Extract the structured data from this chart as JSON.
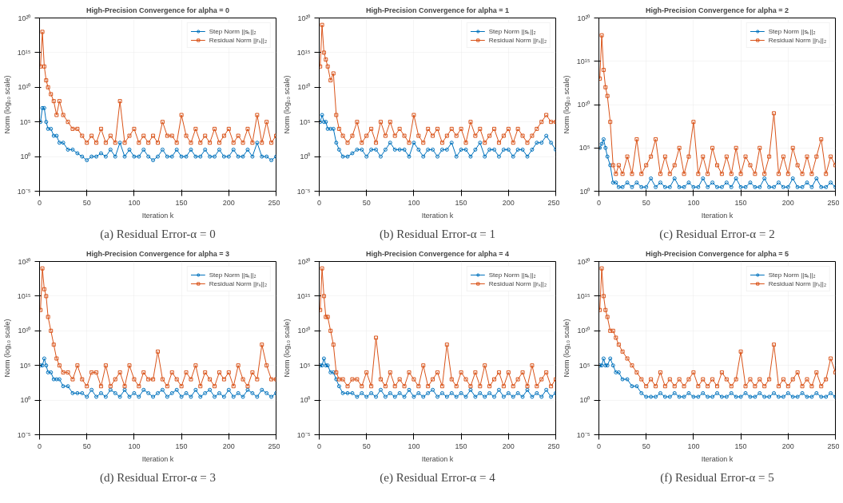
{
  "chart_data": [
    {
      "type": "line",
      "title": "High-Precision Convergence for alpha = 0",
      "xlabel": "Iteration k",
      "ylabel": "Norm (log₁₀ scale)",
      "log": "y",
      "grid": true,
      "legend": "top right",
      "line_style": "solid",
      "annotations": [
        "(a) Residual Error-α = 0"
      ],
      "xlim": [
        0,
        250
      ],
      "xticks": [
        0,
        50,
        100,
        150,
        200,
        250
      ],
      "ylim": [
        1e-05,
        1e+20
      ],
      "yticks": [
        {
          "value": 1e-05,
          "label": "10⁻⁵"
        },
        {
          "value": 1,
          "label": "10⁰"
        },
        {
          "value": 100000.0,
          "label": "10⁵"
        },
        {
          "value": 10000000000.0,
          "label": "10¹⁰"
        },
        {
          "value": 1000000000000000.0,
          "label": "10¹⁵"
        },
        {
          "value": 1e+20,
          "label": "10²⁰"
        }
      ],
      "x": [
        1,
        3,
        5,
        7,
        9,
        12,
        15,
        18,
        21,
        25,
        30,
        35,
        40,
        45,
        50,
        55,
        60,
        65,
        70,
        75,
        80,
        85,
        90,
        95,
        100,
        105,
        110,
        115,
        120,
        125,
        130,
        135,
        140,
        145,
        150,
        155,
        160,
        165,
        170,
        175,
        180,
        185,
        190,
        195,
        200,
        205,
        210,
        215,
        220,
        225,
        230,
        235,
        240,
        245,
        250
      ],
      "series": [
        {
          "name": "Step Norm ||sₖ||₂",
          "color": "#0072bd",
          "marker": "circle",
          "values": [
            100000.0,
            10000000.0,
            10000000.0,
            100000.0,
            10000.0,
            10000.0,
            1000.0,
            1000.0,
            100,
            100,
            10,
            10,
            3,
            1,
            0.3,
            1,
            1,
            3,
            1,
            10,
            1,
            100,
            1,
            10,
            1,
            1,
            10,
            1,
            0.3,
            1,
            10,
            1,
            1,
            10,
            1,
            1,
            10,
            1,
            1,
            10,
            1,
            1,
            10,
            1,
            1,
            10,
            1,
            1,
            10,
            1,
            100,
            1,
            1,
            0.3,
            1
          ]
        },
        {
          "name": "Residual Norm ||rₖ||₂",
          "color": "#d95319",
          "marker": "square",
          "values": [
            10000000000000.0,
            1e+18,
            10000000000000.0,
            100000000000.0,
            10000000000.0,
            1000000000.0,
            100000000.0,
            1000000.0,
            100000000.0,
            1000000.0,
            100000.0,
            10000.0,
            10000.0,
            1000.0,
            100,
            1000.0,
            100,
            10000.0,
            100,
            1000.0,
            100,
            100000000.0,
            100,
            1000.0,
            10000.0,
            100,
            1000.0,
            100,
            1000.0,
            100,
            100000.0,
            1000.0,
            1000.0,
            100,
            1000000.0,
            1000.0,
            100,
            10000.0,
            100,
            1000.0,
            100,
            10000.0,
            100,
            1000.0,
            10000.0,
            100,
            1000.0,
            100,
            10000.0,
            100,
            1000000.0,
            100,
            100000.0,
            100,
            1000.0
          ]
        }
      ]
    },
    {
      "type": "line",
      "title": "High-Precision Convergence for alpha = 1",
      "xlabel": "Iteration k",
      "ylabel": "Norm (log₁₀ scale)",
      "log": "y",
      "grid": true,
      "legend": "top right",
      "line_style": "solid",
      "annotations": [
        "(b) Residual Error-α = 1"
      ],
      "xlim": [
        0,
        250
      ],
      "xticks": [
        0,
        50,
        100,
        150,
        200,
        250
      ],
      "ylim": [
        1e-05,
        1e+20
      ],
      "yticks": [
        {
          "value": 1e-05,
          "label": "10⁻⁵"
        },
        {
          "value": 1,
          "label": "10⁰"
        },
        {
          "value": 100000.0,
          "label": "10⁵"
        },
        {
          "value": 10000000000.0,
          "label": "10¹⁰"
        },
        {
          "value": 1000000000000000.0,
          "label": "10¹⁵"
        },
        {
          "value": 1e+20,
          "label": "10²⁰"
        }
      ],
      "x": [
        1,
        3,
        5,
        7,
        9,
        12,
        15,
        18,
        21,
        25,
        30,
        35,
        40,
        45,
        50,
        55,
        60,
        65,
        70,
        75,
        80,
        85,
        90,
        95,
        100,
        105,
        110,
        115,
        120,
        125,
        130,
        135,
        140,
        145,
        150,
        155,
        160,
        165,
        170,
        175,
        180,
        185,
        190,
        195,
        200,
        205,
        210,
        215,
        220,
        225,
        230,
        235,
        240,
        245,
        250
      ],
      "series": [
        {
          "name": "Step Norm ||sₖ||₂",
          "color": "#0072bd",
          "marker": "circle",
          "values": [
            100000.0,
            1000000.0,
            100000.0,
            100000.0,
            10000.0,
            10000.0,
            10000.0,
            100,
            10,
            1,
            1,
            3,
            10,
            10,
            1,
            10,
            10,
            1,
            10,
            100,
            10,
            10,
            10,
            1,
            100,
            10,
            1,
            10,
            10,
            1,
            10,
            10,
            100,
            1,
            10,
            10,
            1,
            10,
            100,
            1,
            10,
            10,
            1,
            10,
            10,
            1,
            10,
            10,
            1,
            10,
            100,
            100,
            1000.0,
            100,
            10
          ]
        },
        {
          "name": "Residual Norm ||rₖ||₂",
          "color": "#d95319",
          "marker": "square",
          "values": [
            10000000000000.0,
            1e+19,
            1000000000000000.0,
            100000000000000.0,
            10000000000000.0,
            100000000000.0,
            1000000000000.0,
            1000000.0,
            10000.0,
            1000.0,
            100,
            1000.0,
            100000.0,
            100,
            1000.0,
            10000.0,
            100,
            100000.0,
            1000.0,
            100000.0,
            1000.0,
            10000.0,
            1000.0,
            100,
            1000000.0,
            1000.0,
            100,
            10000.0,
            1000.0,
            10000.0,
            100,
            1000.0,
            10000.0,
            1000.0,
            10000.0,
            100,
            100000.0,
            1000.0,
            10000.0,
            100,
            1000.0,
            10000.0,
            100,
            1000.0,
            10000.0,
            100,
            10000.0,
            1000.0,
            100,
            1000.0,
            10000.0,
            100000.0,
            1000000.0,
            100000.0,
            100000.0
          ]
        }
      ]
    },
    {
      "type": "line",
      "title": "High-Precision Convergence for alpha = 2",
      "xlabel": "Iteration k",
      "ylabel": "Norm (log₁₀ scale)",
      "log": "y",
      "grid": true,
      "legend": "top right",
      "line_style": "solid",
      "annotations": [
        "(c) Residual Error-α = 2"
      ],
      "xlim": [
        0,
        250
      ],
      "xticks": [
        0,
        50,
        100,
        150,
        200,
        250
      ],
      "ylim": [
        1,
        1e+20
      ],
      "yticks": [
        {
          "value": 1,
          "label": "10⁰"
        },
        {
          "value": 100000.0,
          "label": "10⁵"
        },
        {
          "value": 10000000000.0,
          "label": "10¹⁰"
        },
        {
          "value": 1000000000000000.0,
          "label": "10¹⁵"
        },
        {
          "value": 1e+20,
          "label": "10²⁰"
        }
      ],
      "x": [
        1,
        3,
        5,
        7,
        9,
        12,
        15,
        18,
        21,
        25,
        30,
        35,
        40,
        45,
        50,
        55,
        60,
        65,
        70,
        75,
        80,
        85,
        90,
        95,
        100,
        105,
        110,
        115,
        120,
        125,
        130,
        135,
        140,
        145,
        150,
        155,
        160,
        165,
        170,
        175,
        180,
        185,
        190,
        195,
        200,
        205,
        210,
        215,
        220,
        225,
        230,
        235,
        240,
        245,
        250
      ],
      "series": [
        {
          "name": "Step Norm ||sₖ||₂",
          "color": "#0072bd",
          "marker": "circle",
          "values": [
            100000.0,
            300000.0,
            1000000.0,
            100000.0,
            10000.0,
            1000.0,
            10,
            10,
            3,
            3,
            10,
            3,
            10,
            3,
            3,
            30,
            3,
            10,
            3,
            3,
            30,
            3,
            3,
            10,
            3,
            3,
            30,
            3,
            10,
            3,
            3,
            10,
            3,
            30,
            3,
            3,
            10,
            3,
            3,
            30,
            3,
            3,
            10,
            3,
            3,
            30,
            3,
            3,
            10,
            3,
            30,
            3,
            3,
            10,
            3
          ]
        },
        {
          "name": "Residual Norm ||rₖ||₂",
          "color": "#d95319",
          "marker": "square",
          "values": [
            10000000000000.0,
            1e+18,
            100000000000000.0,
            1000000000000.0,
            100000000000.0,
            100000000.0,
            1000.0,
            100,
            1000.0,
            100,
            10000.0,
            100,
            1000000.0,
            100,
            1000.0,
            10000.0,
            1000000.0,
            100,
            10000.0,
            100,
            1000.0,
            100000.0,
            100,
            10000.0,
            100000000.0,
            100,
            10000.0,
            100,
            100000.0,
            1000.0,
            100,
            10000.0,
            100,
            100000.0,
            100,
            10000.0,
            1000.0,
            100,
            100000.0,
            100,
            10000.0,
            1000000000.0,
            100,
            10000.0,
            100,
            100000.0,
            1000.0,
            100,
            10000.0,
            100,
            10000.0,
            1000000.0,
            100,
            10000.0,
            1000.0
          ]
        }
      ]
    },
    {
      "type": "line",
      "title": "High-Precision Convergence for alpha = 3",
      "xlabel": "Iteration k",
      "ylabel": "Norm (log₁₀ scale)",
      "log": "y",
      "grid": true,
      "legend": "top right",
      "line_style": "solid",
      "annotations": [
        "(d) Residual Error-α = 3"
      ],
      "xlim": [
        0,
        250
      ],
      "xticks": [
        0,
        50,
        100,
        150,
        200,
        250
      ],
      "ylim": [
        1e-05,
        1e+20
      ],
      "yticks": [
        {
          "value": 1e-05,
          "label": "10⁻⁵"
        },
        {
          "value": 1,
          "label": "10⁰"
        },
        {
          "value": 100000.0,
          "label": "10⁵"
        },
        {
          "value": 10000000000.0,
          "label": "10¹⁰"
        },
        {
          "value": 1000000000000000.0,
          "label": "10¹⁵"
        },
        {
          "value": 1e+20,
          "label": "10²⁰"
        }
      ],
      "x": [
        1,
        3,
        5,
        7,
        9,
        12,
        15,
        18,
        21,
        25,
        30,
        35,
        40,
        45,
        50,
        55,
        60,
        65,
        70,
        75,
        80,
        85,
        90,
        95,
        100,
        105,
        110,
        115,
        120,
        125,
        130,
        135,
        140,
        145,
        150,
        155,
        160,
        165,
        170,
        175,
        180,
        185,
        190,
        195,
        200,
        205,
        210,
        215,
        220,
        225,
        230,
        235,
        240,
        245,
        250
      ],
      "series": [
        {
          "name": "Step Norm ||sₖ||₂",
          "color": "#0072bd",
          "marker": "circle",
          "values": [
            100000.0,
            100000.0,
            1000000.0,
            100000.0,
            10000.0,
            10000.0,
            1000.0,
            1000.0,
            1000.0,
            100,
            100,
            10,
            10,
            10,
            3,
            30,
            3,
            10,
            3,
            30,
            10,
            3,
            30,
            3,
            10,
            3,
            30,
            10,
            3,
            10,
            30,
            3,
            10,
            30,
            3,
            10,
            3,
            30,
            3,
            10,
            30,
            3,
            10,
            3,
            30,
            3,
            10,
            3,
            30,
            10,
            3,
            30,
            10,
            3,
            10
          ]
        },
        {
          "name": "Residual Norm ||rₖ||₂",
          "color": "#d95319",
          "marker": "square",
          "values": [
            10000000000000.0,
            1e+19,
            1e+16,
            1000000000000000.0,
            1000000000000.0,
            10000000000.0,
            100000000.0,
            1000000.0,
            100000.0,
            10000.0,
            10000.0,
            1000.0,
            100000.0,
            1000.0,
            100,
            10000.0,
            10000.0,
            100,
            100000.0,
            100,
            1000.0,
            10000.0,
            100,
            100000.0,
            1000.0,
            100,
            10000.0,
            1000.0,
            1000.0,
            10000000.0,
            1000.0,
            100,
            10000.0,
            1000.0,
            100,
            10000.0,
            1000.0,
            100000.0,
            100,
            10000.0,
            1000.0,
            100,
            10000.0,
            1000.0,
            10000.0,
            100,
            100000.0,
            1000.0,
            100,
            10000.0,
            1000.0,
            100000000.0,
            100000.0,
            1000.0,
            1000.0
          ]
        }
      ]
    },
    {
      "type": "line",
      "title": "High-Precision Convergence for alpha = 4",
      "xlabel": "Iteration k",
      "ylabel": "Norm (log₁₀ scale)",
      "log": "y",
      "grid": true,
      "legend": "top right",
      "line_style": "solid",
      "annotations": [
        "(e) Residual Error-α = 4"
      ],
      "xlim": [
        0,
        250
      ],
      "xticks": [
        0,
        50,
        100,
        150,
        200,
        250
      ],
      "ylim": [
        1e-05,
        1e+20
      ],
      "yticks": [
        {
          "value": 1e-05,
          "label": "10⁻⁵"
        },
        {
          "value": 1,
          "label": "10⁰"
        },
        {
          "value": 100000.0,
          "label": "10⁵"
        },
        {
          "value": 10000000000.0,
          "label": "10¹⁰"
        },
        {
          "value": 1000000000000000.0,
          "label": "10¹⁵"
        },
        {
          "value": 1e+20,
          "label": "10²⁰"
        }
      ],
      "x": [
        1,
        3,
        5,
        7,
        9,
        12,
        15,
        18,
        21,
        25,
        30,
        35,
        40,
        45,
        50,
        55,
        60,
        65,
        70,
        75,
        80,
        85,
        90,
        95,
        100,
        105,
        110,
        115,
        120,
        125,
        130,
        135,
        140,
        145,
        150,
        155,
        160,
        165,
        170,
        175,
        180,
        185,
        190,
        195,
        200,
        205,
        210,
        215,
        220,
        225,
        230,
        235,
        240,
        245,
        250
      ],
      "series": [
        {
          "name": "Step Norm ||sₖ||₂",
          "color": "#0072bd",
          "marker": "circle",
          "values": [
            100000.0,
            100000.0,
            1000000.0,
            100000.0,
            100000.0,
            10000.0,
            10000.0,
            1000.0,
            100,
            10,
            10,
            10,
            3,
            10,
            3,
            10,
            3,
            30,
            3,
            10,
            3,
            10,
            3,
            30,
            3,
            10,
            3,
            10,
            30,
            3,
            10,
            3,
            10,
            3,
            10,
            3,
            30,
            3,
            10,
            3,
            10,
            3,
            30,
            3,
            10,
            3,
            10,
            3,
            30,
            3,
            10,
            3,
            30,
            3,
            10
          ]
        },
        {
          "name": "Residual Norm ||rₖ||₂",
          "color": "#d95319",
          "marker": "square",
          "values": [
            10000000000000.0,
            1e+19,
            1000000000000000.0,
            1000000000000.0,
            1000000000000.0,
            10000000000.0,
            100000000.0,
            10000.0,
            1000.0,
            1000.0,
            100,
            1000.0,
            1000.0,
            100,
            10000.0,
            100,
            1000000000.0,
            1000.0,
            100,
            10000.0,
            100,
            1000.0,
            100,
            10000.0,
            1000.0,
            100,
            100000.0,
            100,
            1000.0,
            10000.0,
            100,
            100000000.0,
            1000.0,
            100,
            10000.0,
            1000.0,
            100,
            10000.0,
            100,
            100000.0,
            100,
            1000.0,
            10000.0,
            100,
            10000.0,
            100,
            1000.0,
            10000.0,
            100,
            100000.0,
            100,
            1000.0,
            10000.0,
            100,
            1000.0
          ]
        }
      ]
    },
    {
      "type": "line",
      "title": "High-Precision Convergence for alpha = 5",
      "xlabel": "Iteration k",
      "ylabel": "Norm (log₁₀ scale)",
      "log": "y",
      "grid": true,
      "legend": "top right",
      "line_style": "solid",
      "annotations": [
        "(f) Residual Error-α = 5"
      ],
      "xlim": [
        0,
        250
      ],
      "xticks": [
        0,
        50,
        100,
        150,
        200,
        250
      ],
      "ylim": [
        1e-05,
        1e+20
      ],
      "yticks": [
        {
          "value": 1e-05,
          "label": "10⁻⁵"
        },
        {
          "value": 1,
          "label": "10⁰"
        },
        {
          "value": 100000.0,
          "label": "10⁵"
        },
        {
          "value": 10000000000.0,
          "label": "10¹⁰"
        },
        {
          "value": 1000000000000000.0,
          "label": "10¹⁵"
        },
        {
          "value": 1e+20,
          "label": "10²⁰"
        }
      ],
      "x": [
        1,
        3,
        5,
        7,
        9,
        12,
        15,
        18,
        21,
        25,
        30,
        35,
        40,
        45,
        50,
        55,
        60,
        65,
        70,
        75,
        80,
        85,
        90,
        95,
        100,
        105,
        110,
        115,
        120,
        125,
        130,
        135,
        140,
        145,
        150,
        155,
        160,
        165,
        170,
        175,
        180,
        185,
        190,
        195,
        200,
        205,
        210,
        215,
        220,
        225,
        230,
        235,
        240,
        245,
        250
      ],
      "series": [
        {
          "name": "Step Norm ||sₖ||₂",
          "color": "#0072bd",
          "marker": "circle",
          "values": [
            100000.0,
            100000.0,
            1000000.0,
            100000.0,
            100000.0,
            1000000.0,
            100000.0,
            10000.0,
            10000.0,
            1000.0,
            1000.0,
            100,
            100,
            10,
            3,
            3,
            3,
            10,
            3,
            3,
            10,
            3,
            3,
            10,
            3,
            3,
            10,
            3,
            3,
            10,
            3,
            3,
            10,
            3,
            3,
            10,
            3,
            3,
            10,
            3,
            3,
            10,
            3,
            3,
            10,
            3,
            3,
            10,
            3,
            3,
            10,
            3,
            3,
            10,
            3
          ]
        },
        {
          "name": "Residual Norm ||rₖ||₂",
          "color": "#d95319",
          "marker": "square",
          "values": [
            10000000000000.0,
            1e+19,
            1000000000000000.0,
            10000000000000.0,
            1000000000000.0,
            10000000000.0,
            10000000000.0,
            1000000000.0,
            100000000.0,
            10000000.0,
            1000000.0,
            100000.0,
            10000.0,
            1000.0,
            100,
            1000.0,
            100,
            10000.0,
            100,
            1000.0,
            100,
            1000.0,
            100,
            1000.0,
            10000.0,
            100,
            1000.0,
            100,
            1000.0,
            100,
            10000.0,
            1000.0,
            100,
            1000.0,
            10000000.0,
            100,
            1000.0,
            100,
            1000.0,
            100,
            1000.0,
            100000000.0,
            100,
            1000.0,
            100,
            1000.0,
            10000.0,
            100,
            1000.0,
            100,
            10000.0,
            100,
            1000.0,
            1000000.0,
            10000.0
          ]
        }
      ]
    }
  ]
}
